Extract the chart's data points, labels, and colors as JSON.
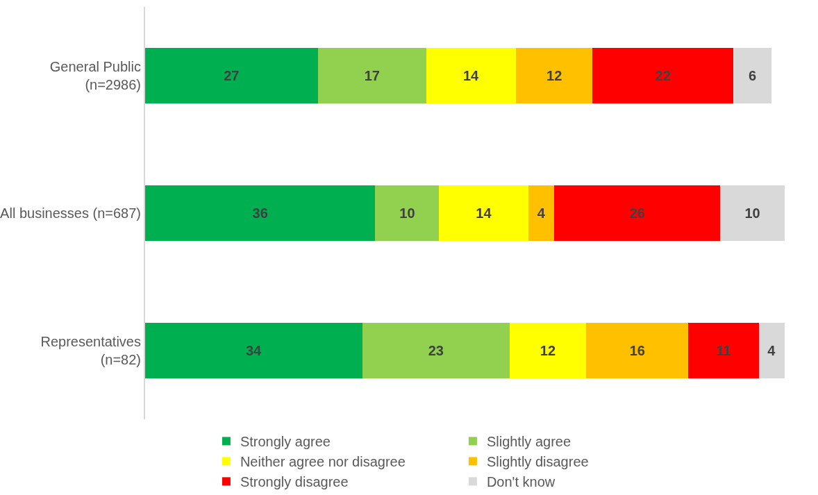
{
  "chart_data": {
    "type": "bar",
    "orientation": "horizontal",
    "stacked": true,
    "data_labels": true,
    "legend": "bottom",
    "grid": false,
    "tick_labels": "y",
    "categories": [
      "General Public\n(n=2986)",
      "All businesses (n=687)",
      "Representatives\n(n=82)"
    ],
    "series": [
      {
        "name": "Strongly agree",
        "color": "#00b050",
        "values": [
          27,
          36,
          34
        ]
      },
      {
        "name": "Slightly agree",
        "color": "#92d050",
        "values": [
          17,
          10,
          23
        ]
      },
      {
        "name": "Neither agree nor disagree",
        "color": "#ffff00",
        "values": [
          14,
          14,
          12
        ]
      },
      {
        "name": "Slightly disagree",
        "color": "#ffc000",
        "values": [
          12,
          4,
          16
        ]
      },
      {
        "name": "Strongly disagree",
        "color": "#ff0000",
        "values": [
          22,
          26,
          11
        ]
      },
      {
        "name": "Don't know",
        "color": "#d9d9d9",
        "values": [
          6,
          10,
          4
        ]
      }
    ]
  }
}
